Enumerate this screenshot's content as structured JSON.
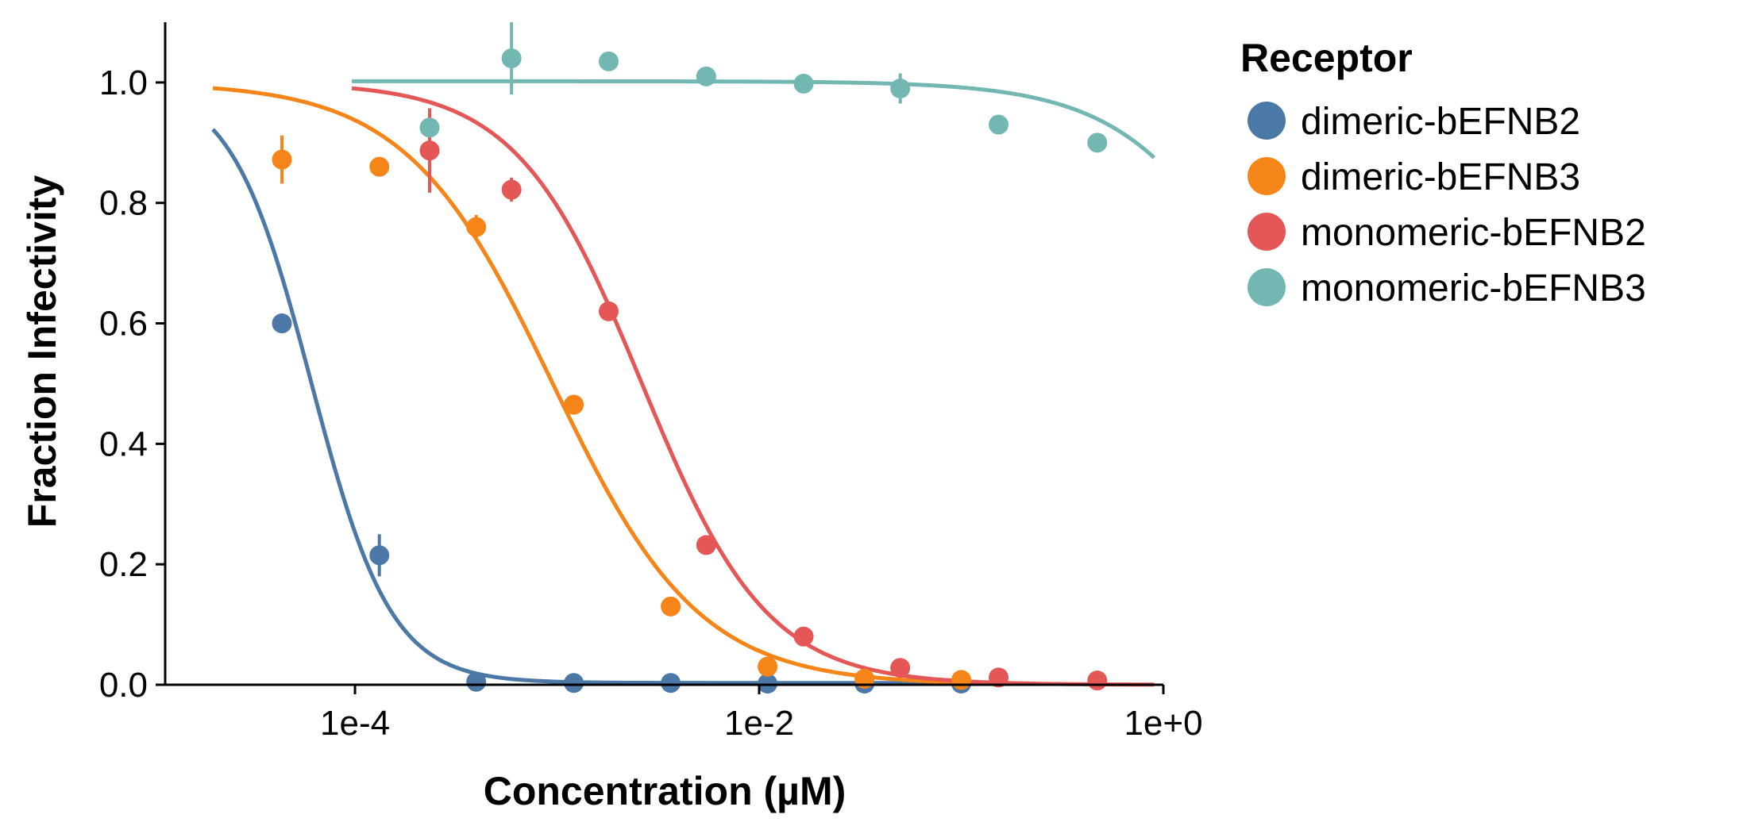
{
  "chart_data": {
    "type": "scatter",
    "xlabel": "Concentration (µM)",
    "ylabel": "Fraction Infectivity",
    "x_scale": "log",
    "xlim": [
      1.15e-05,
      1.0
    ],
    "ylim": [
      0.0,
      1.1
    ],
    "x_ticks": [
      {
        "value": 0.0001,
        "label": "1e-4"
      },
      {
        "value": 0.01,
        "label": "1e-2"
      },
      {
        "value": 1.0,
        "label": "1e+0"
      }
    ],
    "y_ticks": [
      {
        "value": 0.0,
        "label": "0.0"
      },
      {
        "value": 0.2,
        "label": "0.2"
      },
      {
        "value": 0.4,
        "label": "0.4"
      },
      {
        "value": 0.6,
        "label": "0.6"
      },
      {
        "value": 0.8,
        "label": "0.8"
      },
      {
        "value": 1.0,
        "label": "1.0"
      }
    ],
    "legend": {
      "title": "Receptor",
      "position": "right"
    },
    "grid": false,
    "series": [
      {
        "name": "dimeric-bEFNB2",
        "color": "#4c78a8",
        "points": [
          {
            "x": 4.35e-05,
            "y": 0.6,
            "err": 0.0
          },
          {
            "x": 0.000132,
            "y": 0.215,
            "err": 0.035
          },
          {
            "x": 0.000398,
            "y": 0.005,
            "err": 0.0
          },
          {
            "x": 0.00121,
            "y": 0.003,
            "err": 0.0
          },
          {
            "x": 0.00365,
            "y": 0.003,
            "err": 0.0
          },
          {
            "x": 0.011,
            "y": 0.002,
            "err": 0.0
          },
          {
            "x": 0.0332,
            "y": 0.002,
            "err": 0.0
          },
          {
            "x": 0.1,
            "y": 0.002,
            "err": 0.0
          }
        ],
        "fit": {
          "bottom": 0.003,
          "top": 1.0,
          "ic50": 6.08e-05,
          "hill": 2.2,
          "x_range": [
            1.98e-05,
            0.1
          ]
        }
      },
      {
        "name": "dimeric-bEFNB3",
        "color": "#f58518",
        "points": [
          {
            "x": 4.35e-05,
            "y": 0.872,
            "err": 0.04
          },
          {
            "x": 0.000132,
            "y": 0.86,
            "err": 0.0
          },
          {
            "x": 0.000398,
            "y": 0.76,
            "err": 0.02
          },
          {
            "x": 0.00121,
            "y": 0.465,
            "err": 0.0
          },
          {
            "x": 0.00365,
            "y": 0.13,
            "err": 0.0
          },
          {
            "x": 0.011,
            "y": 0.03,
            "err": 0.0
          },
          {
            "x": 0.0332,
            "y": 0.01,
            "err": 0.0
          },
          {
            "x": 0.1,
            "y": 0.008,
            "err": 0.0
          }
        ],
        "fit": {
          "bottom": 0.0,
          "top": 1.0,
          "ic50": 0.000952,
          "hill": 1.2,
          "x_range": [
            1.98e-05,
            0.2
          ]
        }
      },
      {
        "name": "monomeric-bEFNB2",
        "color": "#e45756",
        "points": [
          {
            "x": 0.000234,
            "y": 0.887,
            "err": 0.07
          },
          {
            "x": 0.000595,
            "y": 0.822,
            "err": 0.02
          },
          {
            "x": 0.0018,
            "y": 0.62,
            "err": 0.0
          },
          {
            "x": 0.00547,
            "y": 0.232,
            "err": 0.0
          },
          {
            "x": 0.0166,
            "y": 0.08,
            "err": 0.0
          },
          {
            "x": 0.0499,
            "y": 0.028,
            "err": 0.0
          },
          {
            "x": 0.153,
            "y": 0.012,
            "err": 0.0
          },
          {
            "x": 0.471,
            "y": 0.007,
            "err": 0.0
          }
        ],
        "fit": {
          "bottom": 0.0,
          "top": 1.0,
          "ic50": 0.00263,
          "hill": 1.4,
          "x_range": [
            9.65e-05,
            0.9
          ]
        }
      },
      {
        "name": "monomeric-bEFNB3",
        "color": "#72b7b2",
        "points": [
          {
            "x": 0.000234,
            "y": 0.925,
            "err": 0.0
          },
          {
            "x": 0.000595,
            "y": 1.04,
            "err": 0.06
          },
          {
            "x": 0.0018,
            "y": 1.035,
            "err": 0.0
          },
          {
            "x": 0.00547,
            "y": 1.01,
            "err": 0.0
          },
          {
            "x": 0.0166,
            "y": 0.998,
            "err": 0.0
          },
          {
            "x": 0.0499,
            "y": 0.99,
            "err": 0.025
          },
          {
            "x": 0.153,
            "y": 0.93,
            "err": 0.0
          },
          {
            "x": 0.471,
            "y": 0.9,
            "err": 0.0
          }
        ],
        "fit": {
          "bottom": 0.0,
          "top": 1.002,
          "ic50": 4.5,
          "hill": 1.2,
          "x_range": [
            9.65e-05,
            0.9
          ]
        }
      }
    ]
  }
}
